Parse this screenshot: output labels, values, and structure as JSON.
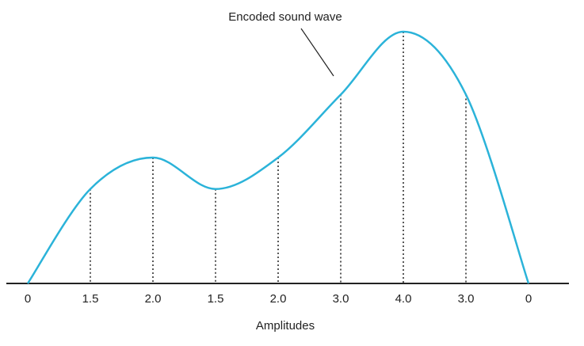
{
  "chart_data": {
    "type": "line",
    "annotation": "Encoded sound wave",
    "x_label": "Amplitudes",
    "values": [
      0,
      1.5,
      2,
      1.5,
      2,
      3,
      4,
      3,
      0
    ],
    "value_labels": [
      "0",
      "1.5",
      "2.0",
      "1.5",
      "2.0",
      "3.0",
      "4.0",
      "3.0",
      "0"
    ],
    "ylim": [
      0,
      4
    ],
    "color": "#2bb3d9"
  }
}
